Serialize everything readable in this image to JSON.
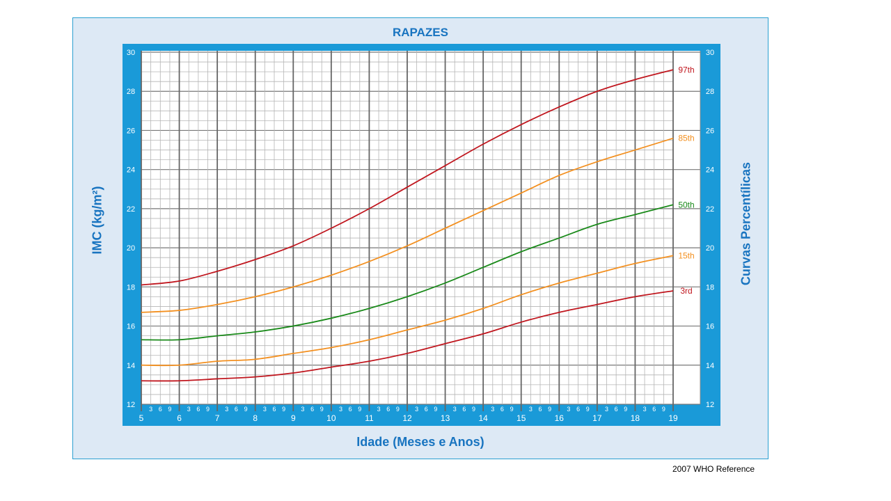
{
  "chart_data": {
    "type": "line",
    "title": "RAPAZES",
    "xlabel": "Idade (Meses e Anos)",
    "ylabel": "IMC (kg/m²)",
    "ylabel_right": "Curvas Percentílicas",
    "source": "2007  WHO Reference",
    "xlim": [
      5,
      19
    ],
    "ylim": [
      12,
      30
    ],
    "x": [
      5,
      6,
      7,
      8,
      9,
      10,
      11,
      12,
      13,
      14,
      15,
      16,
      17,
      18,
      19
    ],
    "x_ticks": [
      "5",
      "6",
      "7",
      "8",
      "9",
      "10",
      "11",
      "12",
      "13",
      "14",
      "15",
      "16",
      "17",
      "18",
      "19"
    ],
    "month_ticks": [
      "3",
      "6",
      "9"
    ],
    "y_ticks": [
      "12",
      "14",
      "16",
      "18",
      "20",
      "22",
      "24",
      "26",
      "28",
      "30"
    ],
    "grid": true,
    "series": [
      {
        "name": "97th",
        "color": "#c0161e",
        "values": [
          18.1,
          18.3,
          18.8,
          19.4,
          20.1,
          21.0,
          22.0,
          23.1,
          24.2,
          25.3,
          26.3,
          27.2,
          28.0,
          28.6,
          29.1
        ]
      },
      {
        "name": "85th",
        "color": "#f39020",
        "values": [
          16.7,
          16.8,
          17.1,
          17.5,
          18.0,
          18.6,
          19.3,
          20.1,
          21.0,
          21.9,
          22.8,
          23.7,
          24.4,
          25.0,
          25.6
        ]
      },
      {
        "name": "50th",
        "color": "#1a8a1a",
        "values": [
          15.3,
          15.3,
          15.5,
          15.7,
          16.0,
          16.4,
          16.9,
          17.5,
          18.2,
          19.0,
          19.8,
          20.5,
          21.2,
          21.7,
          22.2
        ]
      },
      {
        "name": "15th",
        "color": "#f39020",
        "values": [
          14.0,
          14.0,
          14.2,
          14.3,
          14.6,
          14.9,
          15.3,
          15.8,
          16.3,
          16.9,
          17.6,
          18.2,
          18.7,
          19.2,
          19.6
        ]
      },
      {
        "name": "3rd",
        "color": "#c0161e",
        "values": [
          13.2,
          13.2,
          13.3,
          13.4,
          13.6,
          13.9,
          14.2,
          14.6,
          15.1,
          15.6,
          16.2,
          16.7,
          17.1,
          17.5,
          17.8
        ]
      }
    ]
  },
  "colors": {
    "frame": "#1a9ad8",
    "text": "#1874c0"
  }
}
